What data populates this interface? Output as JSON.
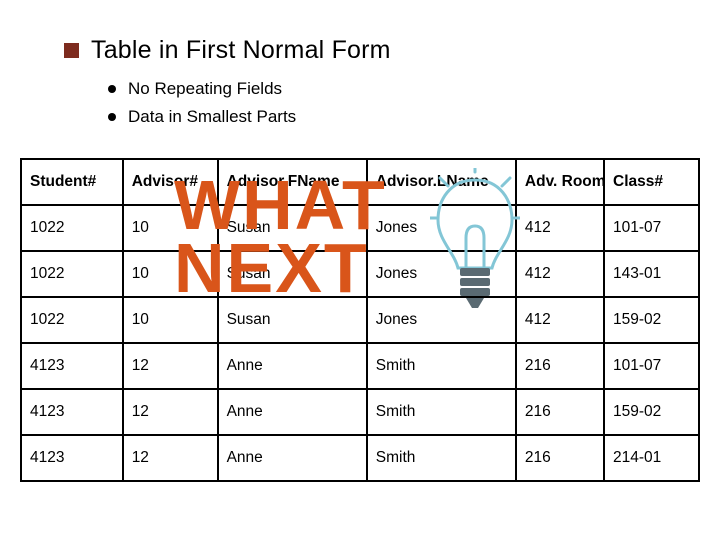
{
  "title": "Table in First Normal Form",
  "bullets": [
    "No Repeating Fields",
    "Data in Smallest Parts"
  ],
  "overlay": {
    "line1": "WHAT",
    "line2": "NEXT"
  },
  "table": {
    "columns": [
      "Student#",
      "Advisor#",
      "Advisor.FName",
      "Advisor.LName",
      "Adv. Room",
      "Class#"
    ],
    "col_widths": [
      "15%",
      "14%",
      "22%",
      "22%",
      "13%",
      "14%"
    ],
    "rows": [
      [
        "1022",
        "10",
        "Susan",
        "Jones",
        "412",
        "101-07"
      ],
      [
        "1022",
        "10",
        "Susan",
        "Jones",
        "412",
        "143-01"
      ],
      [
        "1022",
        "10",
        "Susan",
        "Jones",
        "412",
        "159-02"
      ],
      [
        "4123",
        "12",
        "Anne",
        "Smith",
        "216",
        "101-07"
      ],
      [
        "4123",
        "12",
        "Anne",
        "Smith",
        "216",
        "159-02"
      ],
      [
        "4123",
        "12",
        "Anne",
        "Smith",
        "216",
        "214-01"
      ]
    ]
  },
  "colors": {
    "square_bullet": "#7d2b1e",
    "overlay_text": "#d9551a",
    "bulb_stroke": "#83c6d6",
    "bulb_base": "#5a6a72"
  }
}
